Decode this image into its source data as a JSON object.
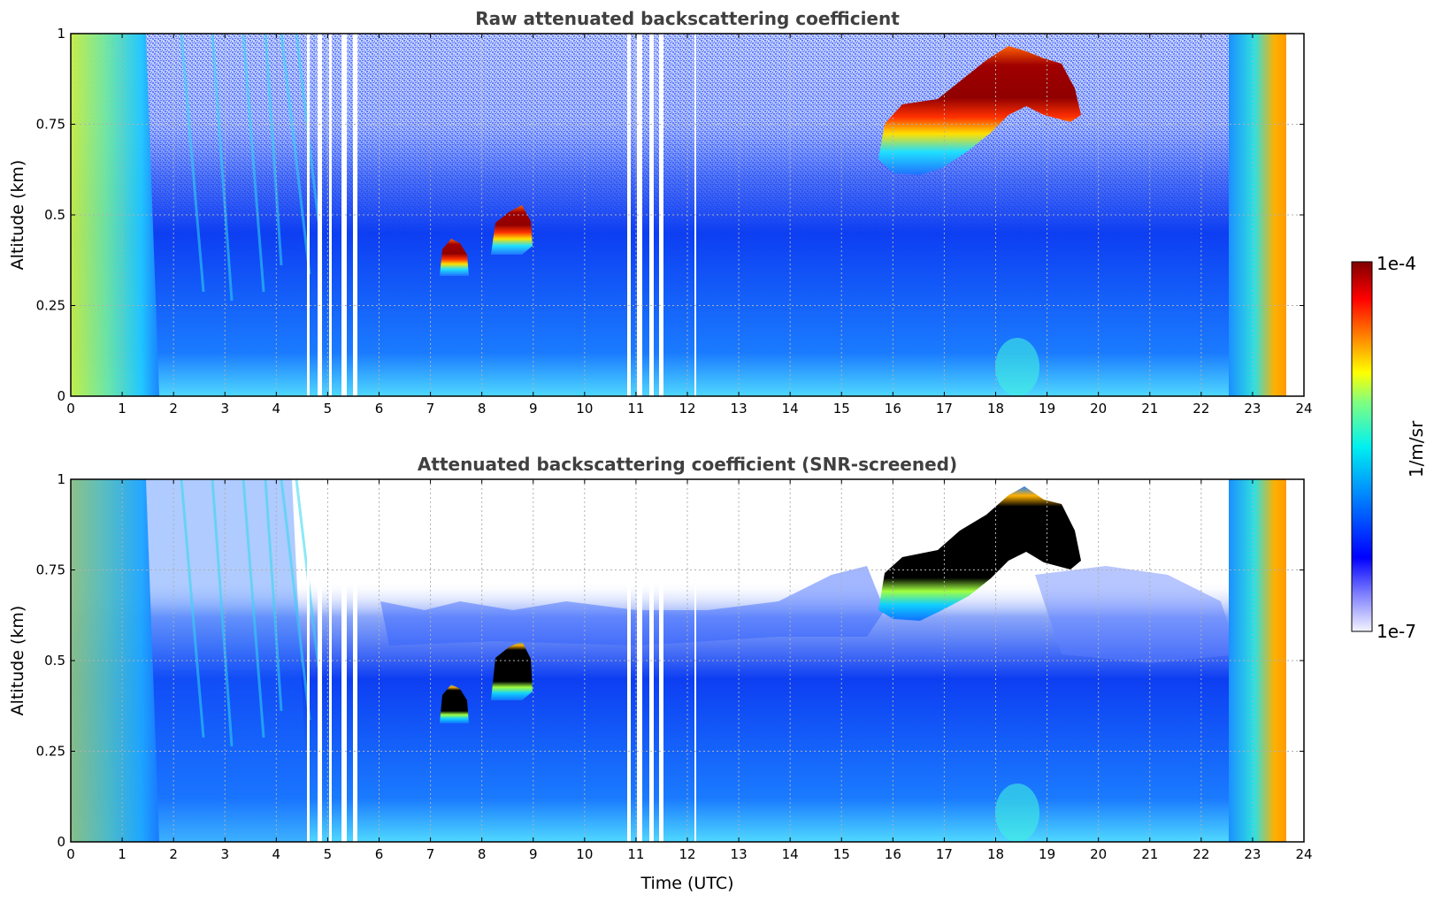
{
  "chart_data": [
    {
      "type": "heatmap",
      "title": "Raw attenuated backscattering coefficient",
      "xlabel": "",
      "ylabel": "Altitude (km)",
      "xlim": [
        0,
        24
      ],
      "ylim": [
        0,
        1
      ],
      "x_ticks": [
        "0",
        "1",
        "2",
        "3",
        "4",
        "5",
        "6",
        "7",
        "8",
        "9",
        "10",
        "11",
        "12",
        "13",
        "14",
        "15",
        "16",
        "17",
        "18",
        "19",
        "20",
        "21",
        "22",
        "23",
        "24"
      ],
      "y_ticks": [
        "0",
        "0.25",
        "0.5",
        "0.75",
        "1"
      ],
      "y_tick_values": [
        0,
        0.25,
        0.5,
        0.75,
        1
      ],
      "grid": true,
      "cloud_layers": [
        {
          "time_start": 7.2,
          "time_end": 7.6,
          "alt_bottom": 0.34,
          "alt_top": 0.41
        },
        {
          "time_start": 8.2,
          "time_end": 8.8,
          "alt_bottom": 0.41,
          "alt_top": 0.52
        },
        {
          "time_start": 15.8,
          "time_end": 19.6,
          "alt_bottom": 0.62,
          "alt_top": 0.95
        }
      ]
    },
    {
      "type": "heatmap",
      "title": "Attenuated backscattering coefficient (SNR-screened)",
      "xlabel": "Time (UTC)",
      "ylabel": "Altitude (km)",
      "xlim": [
        0,
        24
      ],
      "ylim": [
        0,
        1
      ],
      "x_ticks": [
        "0",
        "1",
        "2",
        "3",
        "4",
        "5",
        "6",
        "7",
        "8",
        "9",
        "10",
        "11",
        "12",
        "13",
        "14",
        "15",
        "16",
        "17",
        "18",
        "19",
        "20",
        "21",
        "22",
        "23",
        "24"
      ],
      "y_ticks": [
        "0",
        "0.25",
        "0.5",
        "0.75",
        "1"
      ],
      "y_tick_values": [
        0,
        0.25,
        0.5,
        0.75,
        1
      ],
      "grid": true,
      "cloud_layers": [
        {
          "time_start": 7.2,
          "time_end": 7.6,
          "alt_bottom": 0.34,
          "alt_top": 0.41
        },
        {
          "time_start": 8.2,
          "time_end": 8.8,
          "alt_bottom": 0.41,
          "alt_top": 0.55
        },
        {
          "time_start": 15.8,
          "time_end": 19.6,
          "alt_bottom": 0.62,
          "alt_top": 0.99
        }
      ]
    }
  ],
  "colorbar": {
    "max_label": "1e-4",
    "min_label": "1e-7",
    "unit_label": "1/m/sr",
    "colors": [
      "#ffffff",
      "#0000ff",
      "#0080ff",
      "#00ffff",
      "#ffff00",
      "#ff8000",
      "#ff0000",
      "#800000"
    ]
  }
}
